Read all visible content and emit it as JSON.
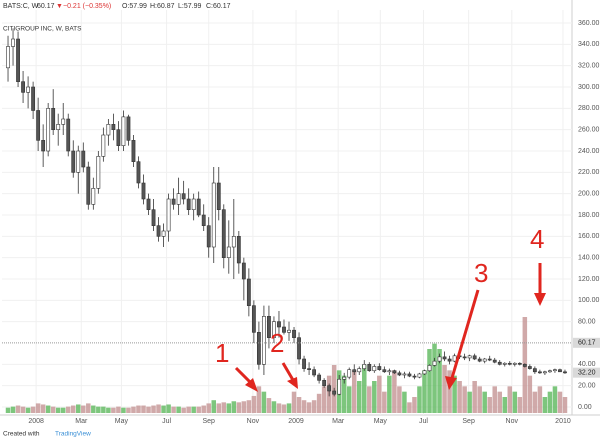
{
  "chart_data": {
    "type": "candlestick",
    "header": {
      "symbol": "BATS:C, W",
      "last": "60.17",
      "arrow": "▼",
      "change": "−0.21 (−0.35%)",
      "open": "O:57.99",
      "high": "H:60.87",
      "low": "L:57.99",
      "close": "C:60.17"
    },
    "title": "CITIGROUP INC, W, BATS",
    "footer": {
      "prefix": "Created with",
      "brand": "TradingView"
    },
    "colors": {
      "up": "#ffffff",
      "down": "#555555",
      "outline": "#333333",
      "volume_up": "#5cb85c",
      "volume_down": "#c49393",
      "last_line": "#999999"
    },
    "grid": true,
    "xlim": [
      -1.2,
      112.4
    ],
    "ylim": [
      -7.5,
      372.2
    ],
    "xticks": [
      {
        "value": 5.6,
        "label": "2008"
      },
      {
        "value": 14.6,
        "label": "Mar"
      },
      {
        "value": 22.6,
        "label": "May"
      },
      {
        "value": 31.6,
        "label": "Jul"
      },
      {
        "value": 40.0,
        "label": "Sep"
      },
      {
        "value": 48.8,
        "label": "Nov"
      },
      {
        "value": 57.4,
        "label": "2009"
      },
      {
        "value": 65.8,
        "label": "Mar"
      },
      {
        "value": 74.2,
        "label": "May"
      },
      {
        "value": 82.8,
        "label": "Jul"
      },
      {
        "value": 91.8,
        "label": "Sep"
      },
      {
        "value": 100.4,
        "label": "Nov"
      },
      {
        "value": 110.6,
        "label": "2010"
      }
    ],
    "yticks": [
      {
        "value": 0,
        "label": "0.00"
      },
      {
        "value": 20,
        "label": "20.00"
      },
      {
        "value": 40,
        "label": "40.00"
      },
      {
        "value": 80,
        "label": "80.00"
      },
      {
        "value": 100,
        "label": "100.00"
      },
      {
        "value": 120,
        "label": "120.00"
      },
      {
        "value": 140,
        "label": "140.00"
      },
      {
        "value": 160,
        "label": "160.00"
      },
      {
        "value": 180,
        "label": "180.00"
      },
      {
        "value": 200,
        "label": "200.00"
      },
      {
        "value": 220,
        "label": "220.00"
      },
      {
        "value": 240,
        "label": "240.00"
      },
      {
        "value": 260,
        "label": "260.00"
      },
      {
        "value": 280,
        "label": "280.00"
      },
      {
        "value": 300,
        "label": "300.00"
      },
      {
        "value": 320,
        "label": "320.00"
      },
      {
        "value": 340,
        "label": "340.00"
      },
      {
        "value": 360,
        "label": "360.00"
      }
    ],
    "price_labels": [
      {
        "value": 60.17,
        "label": "60.17"
      },
      {
        "value": 32.2,
        "label": "32.20"
      }
    ],
    "ohlc": [
      [
        318,
        348,
        305,
        338
      ],
      [
        338,
        355,
        320,
        345
      ],
      [
        345,
        352,
        300,
        305
      ],
      [
        305,
        315,
        285,
        295
      ],
      [
        295,
        310,
        280,
        300
      ],
      [
        300,
        305,
        270,
        278
      ],
      [
        278,
        290,
        240,
        250
      ],
      [
        250,
        265,
        225,
        240
      ],
      [
        240,
        285,
        235,
        280
      ],
      [
        280,
        298,
        255,
        260
      ],
      [
        260,
        275,
        245,
        265
      ],
      [
        265,
        285,
        255,
        270
      ],
      [
        270,
        275,
        235,
        240
      ],
      [
        240,
        250,
        215,
        220
      ],
      [
        220,
        245,
        200,
        240
      ],
      [
        240,
        248,
        220,
        225
      ],
      [
        225,
        230,
        185,
        190
      ],
      [
        190,
        215,
        185,
        205
      ],
      [
        205,
        240,
        200,
        235
      ],
      [
        235,
        262,
        230,
        255
      ],
      [
        255,
        270,
        245,
        265
      ],
      [
        265,
        275,
        250,
        260
      ],
      [
        260,
        268,
        240,
        245
      ],
      [
        245,
        278,
        240,
        272
      ],
      [
        272,
        274,
        245,
        250
      ],
      [
        250,
        255,
        225,
        230
      ],
      [
        230,
        235,
        205,
        210
      ],
      [
        210,
        218,
        190,
        195
      ],
      [
        195,
        200,
        180,
        185
      ],
      [
        185,
        195,
        165,
        170
      ],
      [
        170,
        178,
        155,
        160
      ],
      [
        160,
        172,
        150,
        165
      ],
      [
        165,
        200,
        155,
        195
      ],
      [
        195,
        205,
        185,
        190
      ],
      [
        190,
        215,
        180,
        200
      ],
      [
        200,
        212,
        190,
        195
      ],
      [
        195,
        205,
        180,
        185
      ],
      [
        185,
        200,
        175,
        195
      ],
      [
        195,
        202,
        178,
        180
      ],
      [
        180,
        190,
        165,
        170
      ],
      [
        170,
        178,
        140,
        150
      ],
      [
        150,
        225,
        135,
        210
      ],
      [
        210,
        225,
        175,
        185
      ],
      [
        185,
        190,
        130,
        140
      ],
      [
        140,
        175,
        125,
        150
      ],
      [
        150,
        195,
        120,
        160
      ],
      [
        160,
        165,
        125,
        135
      ],
      [
        135,
        140,
        100,
        120
      ],
      [
        120,
        130,
        85,
        95
      ],
      [
        95,
        100,
        60,
        70
      ],
      [
        70,
        80,
        35,
        40
      ],
      [
        40,
        95,
        30,
        85
      ],
      [
        85,
        95,
        55,
        65
      ],
      [
        65,
        85,
        60,
        80
      ],
      [
        80,
        90,
        65,
        75
      ],
      [
        75,
        82,
        68,
        70
      ],
      [
        70,
        80,
        62,
        72
      ],
      [
        72,
        75,
        60,
        65
      ],
      [
        65,
        70,
        40,
        45
      ],
      [
        45,
        48,
        33,
        36
      ],
      [
        36,
        42,
        30,
        35
      ],
      [
        35,
        38,
        28,
        30
      ],
      [
        30,
        32,
        22,
        25
      ],
      [
        25,
        27,
        18,
        20
      ],
      [
        20,
        22,
        10,
        15
      ],
      [
        15,
        18,
        10,
        12
      ],
      [
        12,
        30,
        11,
        26
      ],
      [
        26,
        32,
        22,
        28
      ],
      [
        28,
        37,
        26,
        35
      ],
      [
        35,
        40,
        30,
        33
      ],
      [
        33,
        38,
        30,
        36
      ],
      [
        36,
        44,
        34,
        40
      ],
      [
        40,
        42,
        33,
        34
      ],
      [
        34,
        40,
        32,
        38
      ],
      [
        38,
        41,
        34,
        35
      ],
      [
        35,
        38,
        32,
        33
      ],
      [
        33,
        36,
        30,
        34
      ],
      [
        34,
        35,
        31,
        32
      ],
      [
        32,
        34,
        29,
        30
      ],
      [
        30,
        33,
        27,
        31
      ],
      [
        31,
        33,
        28,
        29
      ],
      [
        29,
        31,
        26,
        28
      ],
      [
        28,
        32,
        27,
        31
      ],
      [
        31,
        35,
        30,
        34
      ],
      [
        34,
        40,
        33,
        39
      ],
      [
        39,
        46,
        38,
        43
      ],
      [
        43,
        50,
        41,
        47
      ],
      [
        47,
        52,
        43,
        45
      ],
      [
        45,
        48,
        40,
        43
      ],
      [
        43,
        50,
        42,
        48
      ],
      [
        48,
        52,
        45,
        47
      ],
      [
        47,
        50,
        44,
        46
      ],
      [
        46,
        49,
        43,
        48
      ],
      [
        48,
        50,
        44,
        45
      ],
      [
        45,
        47,
        42,
        43
      ],
      [
        43,
        46,
        41,
        45
      ],
      [
        45,
        48,
        43,
        44
      ],
      [
        44,
        46,
        41,
        42
      ],
      [
        42,
        44,
        39,
        40
      ],
      [
        40,
        42,
        38,
        41
      ],
      [
        41,
        43,
        39,
        40
      ],
      [
        40,
        42,
        38,
        41
      ],
      [
        41,
        42,
        39,
        40
      ],
      [
        40,
        41,
        37,
        38
      ],
      [
        38,
        40,
        35,
        36
      ],
      [
        36,
        38,
        31,
        33
      ],
      [
        33,
        35,
        31,
        32
      ],
      [
        32,
        34,
        30,
        33
      ],
      [
        33,
        35,
        32,
        34
      ],
      [
        34,
        36,
        32,
        35
      ],
      [
        35,
        36,
        33,
        33
      ],
      [
        33,
        35,
        31,
        32
      ]
    ],
    "volume": [
      5,
      6,
      7,
      6,
      5,
      6,
      9,
      8,
      7,
      6,
      5,
      5,
      6,
      7,
      8,
      7,
      9,
      7,
      6,
      6,
      5,
      5,
      6,
      5,
      5,
      6,
      7,
      7,
      6,
      7,
      8,
      7,
      8,
      6,
      6,
      5,
      6,
      6,
      6,
      7,
      9,
      12,
      9,
      10,
      9,
      11,
      10,
      11,
      12,
      16,
      25,
      20,
      14,
      11,
      9,
      8,
      9,
      20,
      15,
      12,
      10,
      12,
      18,
      25,
      35,
      45,
      40,
      35,
      25,
      40,
      30,
      45,
      25,
      30,
      35,
      20,
      35,
      40,
      25,
      20,
      10,
      15,
      25,
      40,
      60,
      65,
      60,
      45,
      40,
      35,
      30,
      25,
      20,
      30,
      25,
      20,
      15,
      25,
      20,
      15,
      25,
      20,
      15,
      90,
      35,
      20,
      25,
      15,
      20,
      25,
      20,
      15
    ],
    "annotations": [
      "1",
      "2",
      "3",
      "4"
    ]
  }
}
